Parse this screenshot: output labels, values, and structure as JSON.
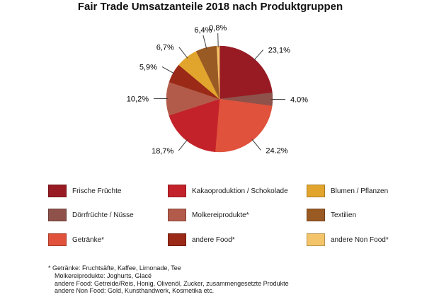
{
  "header": {
    "title": "Fair Trade Umsatzanteile 2018 nach Produktgruppen"
  },
  "chart_data": {
    "type": "pie",
    "title": "Fair Trade Umsatzanteile 2018 nach Produktgruppen",
    "unit": "%",
    "direction": "clockwise",
    "start_angle_deg": 0,
    "legend_position": "bottom",
    "slices": [
      {
        "label": "Frische Früchte",
        "value": 23.1,
        "display": "23,1%",
        "color": "#981B23"
      },
      {
        "label": "Dörrfrüchte / Nüsse",
        "value": 4.0,
        "display": "4.0%",
        "color": "#8E524B"
      },
      {
        "label": "Getränke*",
        "value": 24.2,
        "display": "24.2%",
        "color": "#E0523B"
      },
      {
        "label": "Kakaoproduktion / Schokolade",
        "value": 18.7,
        "display": "18,7%",
        "color": "#C4222A"
      },
      {
        "label": "Molkereiprodukte*",
        "value": 10.2,
        "display": "10,2%",
        "color": "#B35B4A"
      },
      {
        "label": "andere Food*",
        "value": 5.9,
        "display": "5,9%",
        "color": "#9A2A17"
      },
      {
        "label": "Blumen / Pflanzen",
        "value": 6.7,
        "display": "6,7%",
        "color": "#E1A52E"
      },
      {
        "label": "Textilien",
        "value": 6.4,
        "display": "6,4%",
        "color": "#9A5A24"
      },
      {
        "label": "andere Non Food*",
        "value": 0.8,
        "display": "0,8%",
        "color": "#F3C469"
      }
    ]
  },
  "footnote": {
    "lines": [
      "* Getränke: Fruchtsäfte, Kaffee, Limonade, Tee",
      "Molkereiprodukte: Joghurts, Glacé",
      "andere Food: Getreide/Reis, Honig, Olivenöl, Zucker, zusammengesetzte Produkte",
      "andere Non Food: Gold, Kunsthandwerk, Kosmetika etc."
    ]
  }
}
